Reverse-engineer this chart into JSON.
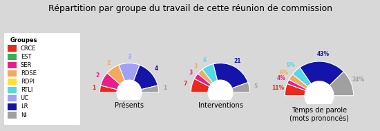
{
  "title": "Répartition par groupe du travail de cette réunion de commission",
  "background_color": "#d8d8d8",
  "chart_bg": "#ebebeb",
  "groups": [
    "CRCE",
    "EST",
    "SER",
    "RDSE",
    "RDPI",
    "RTLI",
    "UC",
    "LR",
    "NI"
  ],
  "colors": [
    "#e8291c",
    "#37b34a",
    "#e91e8c",
    "#f4a95a",
    "#ffe033",
    "#55d8e8",
    "#a0a0f8",
    "#1414aa",
    "#a0a0a0"
  ],
  "presences": [
    1,
    0,
    2,
    2,
    0,
    0,
    3,
    4,
    1
  ],
  "interventions": [
    7,
    0,
    3,
    3,
    0,
    6,
    0,
    21,
    5
  ],
  "temps_parole_pct": [
    11,
    0,
    4,
    6,
    0,
    9,
    0,
    43,
    24
  ],
  "chart1_label": "Présents",
  "chart2_label": "Interventions",
  "chart3_label": "Temps de parole\n(mots prononcés)",
  "legend_title": "Groupes",
  "title_fontsize": 9,
  "label_fontsize": 7,
  "legend_fontsize": 6,
  "value_fontsize": 5.5
}
